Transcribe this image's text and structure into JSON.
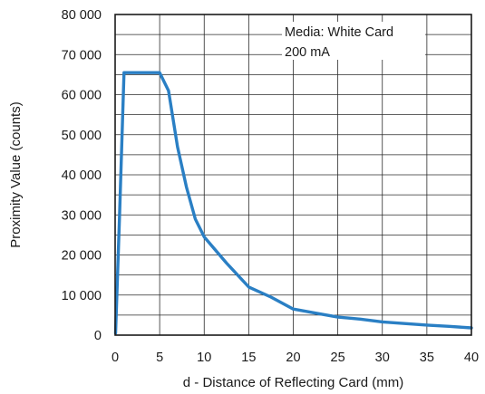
{
  "chart_data": {
    "type": "line",
    "title": "",
    "xlabel": "d - Distance of Reflecting Card (mm)",
    "ylabel": "Proximity Value (counts)",
    "xlim": [
      0,
      40
    ],
    "ylim": [
      0,
      80000
    ],
    "grid": true,
    "x_ticks": [
      0,
      5,
      10,
      15,
      20,
      25,
      30,
      35,
      40
    ],
    "x_tick_labels": [
      "0",
      "5",
      "10",
      "15",
      "20",
      "25",
      "30",
      "35",
      "40"
    ],
    "y_ticks": [
      0,
      10000,
      20000,
      30000,
      40000,
      50000,
      60000,
      70000,
      80000
    ],
    "y_tick_labels": [
      "0",
      "10 000",
      "20 000",
      "30 000",
      "40 000",
      "50 000",
      "60 000",
      "70 000",
      "80 000"
    ],
    "annotations": [
      "Media: White Card",
      "200 mA"
    ],
    "line_color": "#2a7fc4",
    "series": [
      {
        "x": [
          0.05,
          0.5,
          1,
          2,
          3,
          4,
          5,
          6,
          7,
          8,
          9,
          10,
          12.5,
          15,
          17.5,
          20,
          22.5,
          25,
          27.5,
          30,
          32.5,
          35,
          37.5,
          40
        ],
        "y": [
          500,
          30000,
          65500,
          65500,
          65500,
          65500,
          65500,
          61000,
          47000,
          37000,
          29000,
          24500,
          18000,
          12000,
          9500,
          6500,
          5500,
          4500,
          4000,
          3300,
          2900,
          2500,
          2200,
          1800
        ]
      }
    ]
  }
}
